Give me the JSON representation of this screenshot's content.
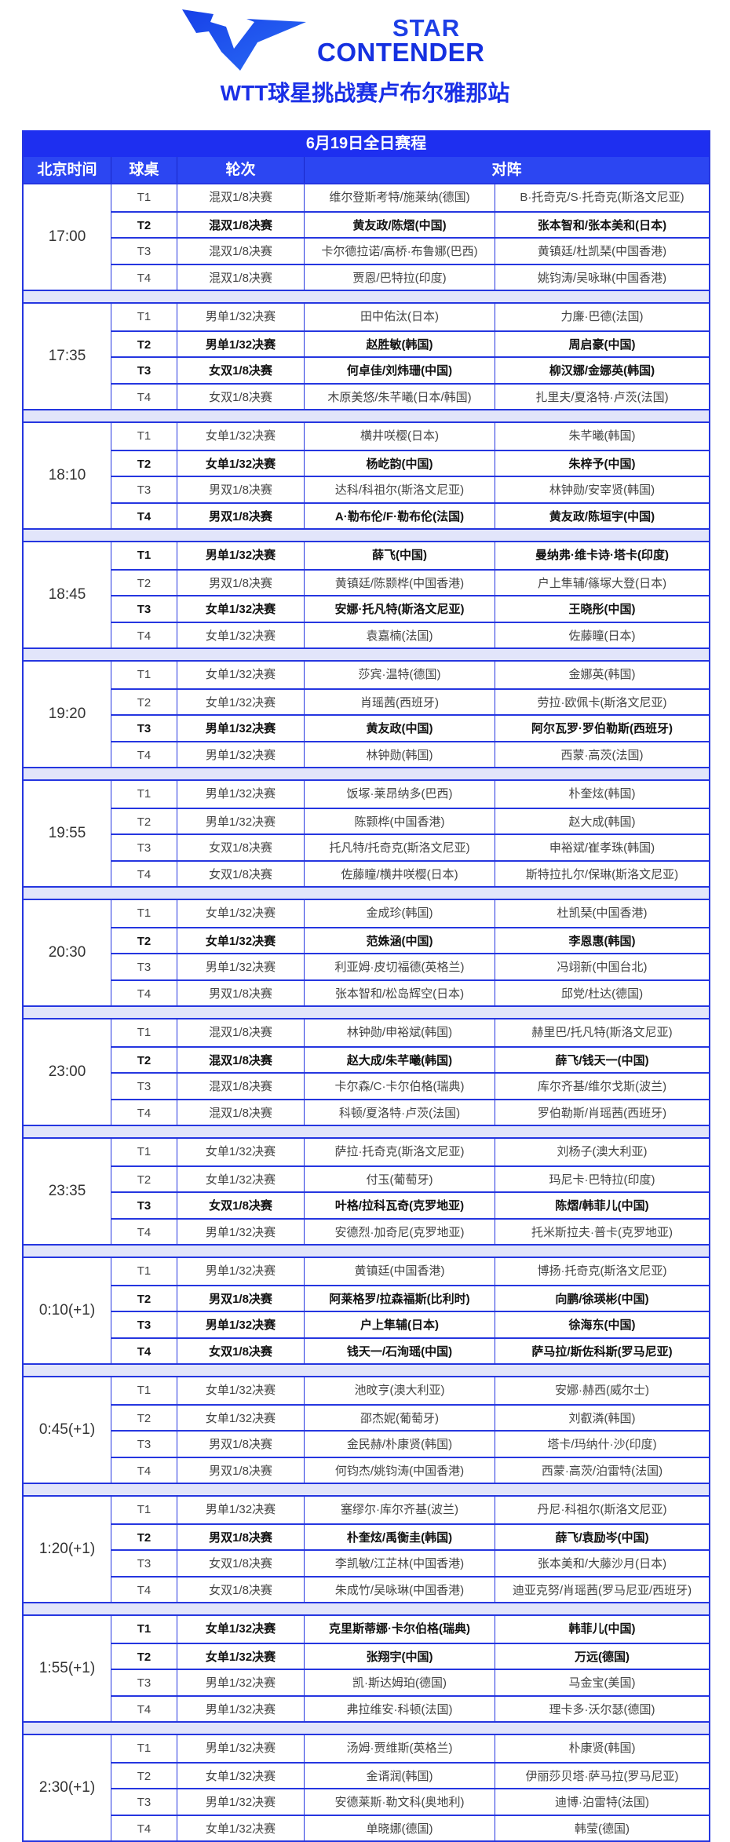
{
  "header": {
    "logo_text_line1": "STAR",
    "logo_text_line2": "CONTENDER",
    "subtitle": "WTT球星挑战赛卢布尔雅那站"
  },
  "colors": {
    "brand_blue": "#1e2ff0",
    "header_blue": "#2c46f2",
    "separator": "#e2e5fa"
  },
  "schedule": {
    "title": "6月19日全日赛程",
    "columns": [
      "北京时间",
      "球桌",
      "轮次",
      "对阵"
    ],
    "groups": [
      {
        "time": "17:00",
        "matches": [
          {
            "table": "T1",
            "round": "混双1/8决赛",
            "player1": "维尔登斯考特/施莱纳(德国)",
            "player2": "B·托奇克/S·托奇克(斯洛文尼亚)",
            "highlight": false
          },
          {
            "table": "T2",
            "round": "混双1/8决赛",
            "player1": "黄友政/陈熠(中国)",
            "player2": "张本智和/张本美和(日本)",
            "highlight": true
          },
          {
            "table": "T3",
            "round": "混双1/8决赛",
            "player1": "卡尔德拉诺/高桥·布鲁娜(巴西)",
            "player2": "黄镇廷/杜凯琹(中国香港)",
            "highlight": false
          },
          {
            "table": "T4",
            "round": "混双1/8决赛",
            "player1": "贾恩/巴特拉(印度)",
            "player2": "姚钧涛/吴咏琳(中国香港)",
            "highlight": false
          }
        ]
      },
      {
        "time": "17:35",
        "matches": [
          {
            "table": "T1",
            "round": "男单1/32决赛",
            "player1": "田中佑汰(日本)",
            "player2": "力廉·巴德(法国)",
            "highlight": false
          },
          {
            "table": "T2",
            "round": "男单1/32决赛",
            "player1": "赵胜敏(韩国)",
            "player2": "周启豪(中国)",
            "highlight": true
          },
          {
            "table": "T3",
            "round": "女双1/8决赛",
            "player1": "何卓佳/刘炜珊(中国)",
            "player2": "柳汉娜/金娜英(韩国)",
            "highlight": true
          },
          {
            "table": "T4",
            "round": "女双1/8决赛",
            "player1": "木原美悠/朱芊曦(日本/韩国)",
            "player2": "扎里夫/夏洛特·卢茨(法国)",
            "highlight": false
          }
        ]
      },
      {
        "time": "18:10",
        "matches": [
          {
            "table": "T1",
            "round": "女单1/32决赛",
            "player1": "横井咲樱(日本)",
            "player2": "朱芊曦(韩国)",
            "highlight": false
          },
          {
            "table": "T2",
            "round": "女单1/32决赛",
            "player1": "杨屹韵(中国)",
            "player2": "朱梓予(中国)",
            "highlight": true
          },
          {
            "table": "T3",
            "round": "男双1/8决赛",
            "player1": "达科/科祖尔(斯洛文尼亚)",
            "player2": "林钟勋/安宰贤(韩国)",
            "highlight": false
          },
          {
            "table": "T4",
            "round": "男双1/8决赛",
            "player1": "A·勒布伦/F·勒布伦(法国)",
            "player2": "黄友政/陈垣宇(中国)",
            "highlight": true
          }
        ]
      },
      {
        "time": "18:45",
        "matches": [
          {
            "table": "T1",
            "round": "男单1/32决赛",
            "player1": "薛飞(中国)",
            "player2": "曼纳弗·维卡诗·塔卡(印度)",
            "highlight": true
          },
          {
            "table": "T2",
            "round": "男双1/8决赛",
            "player1": "黄镇廷/陈颢桦(中国香港)",
            "player2": "户上隼辅/篠塚大登(日本)",
            "highlight": false
          },
          {
            "table": "T3",
            "round": "女单1/32决赛",
            "player1": "安娜·托凡特(斯洛文尼亚)",
            "player2": "王晓彤(中国)",
            "highlight": true
          },
          {
            "table": "T4",
            "round": "女单1/32决赛",
            "player1": "袁嘉楠(法国)",
            "player2": "佐藤瞳(日本)",
            "highlight": false
          }
        ]
      },
      {
        "time": "19:20",
        "matches": [
          {
            "table": "T1",
            "round": "女单1/32决赛",
            "player1": "莎宾·温特(德国)",
            "player2": "金娜英(韩国)",
            "highlight": false
          },
          {
            "table": "T2",
            "round": "女单1/32决赛",
            "player1": "肖瑶茜(西班牙)",
            "player2": "劳拉·欧佩卡(斯洛文尼亚)",
            "highlight": false
          },
          {
            "table": "T3",
            "round": "男单1/32决赛",
            "player1": "黄友政(中国)",
            "player2": "阿尔瓦罗·罗伯勒斯(西班牙)",
            "highlight": true
          },
          {
            "table": "T4",
            "round": "男单1/32决赛",
            "player1": "林钟勋(韩国)",
            "player2": "西蒙·高茨(法国)",
            "highlight": false
          }
        ]
      },
      {
        "time": "19:55",
        "matches": [
          {
            "table": "T1",
            "round": "男单1/32决赛",
            "player1": "饭塚·莱昂纳多(巴西)",
            "player2": "朴奎炫(韩国)",
            "highlight": false
          },
          {
            "table": "T2",
            "round": "男单1/32决赛",
            "player1": "陈颢桦(中国香港)",
            "player2": "赵大成(韩国)",
            "highlight": false
          },
          {
            "table": "T3",
            "round": "女双1/8决赛",
            "player1": "托凡特/托奇克(斯洛文尼亚)",
            "player2": "申裕斌/崔孝珠(韩国)",
            "highlight": false
          },
          {
            "table": "T4",
            "round": "女双1/8决赛",
            "player1": "佐藤瞳/横井咲樱(日本)",
            "player2": "斯特拉扎尔/保琳(斯洛文尼亚)",
            "highlight": false
          }
        ]
      },
      {
        "time": "20:30",
        "matches": [
          {
            "table": "T1",
            "round": "女单1/32决赛",
            "player1": "金成珍(韩国)",
            "player2": "杜凯琹(中国香港)",
            "highlight": false
          },
          {
            "table": "T2",
            "round": "女单1/32决赛",
            "player1": "范姝涵(中国)",
            "player2": "李恩惠(韩国)",
            "highlight": true
          },
          {
            "table": "T3",
            "round": "男单1/32决赛",
            "player1": "利亚姆·皮切福德(英格兰)",
            "player2": "冯翊新(中国台北)",
            "highlight": false
          },
          {
            "table": "T4",
            "round": "男双1/8决赛",
            "player1": "张本智和/松岛辉空(日本)",
            "player2": "邱党/杜达(德国)",
            "highlight": false
          }
        ]
      },
      {
        "time": "23:00",
        "matches": [
          {
            "table": "T1",
            "round": "混双1/8决赛",
            "player1": "林钟勋/申裕斌(韩国)",
            "player2": "赫里巴/托凡特(斯洛文尼亚)",
            "highlight": false
          },
          {
            "table": "T2",
            "round": "混双1/8决赛",
            "player1": "赵大成/朱芊曦(韩国)",
            "player2": "薛飞/钱天一(中国)",
            "highlight": true
          },
          {
            "table": "T3",
            "round": "混双1/8决赛",
            "player1": "卡尔森/C·卡尔伯格(瑞典)",
            "player2": "库尔齐基/维尔戈斯(波兰)",
            "highlight": false
          },
          {
            "table": "T4",
            "round": "混双1/8决赛",
            "player1": "科顿/夏洛特·卢茨(法国)",
            "player2": "罗伯勒斯/肖瑶茜(西班牙)",
            "highlight": false
          }
        ]
      },
      {
        "time": "23:35",
        "matches": [
          {
            "table": "T1",
            "round": "女单1/32决赛",
            "player1": "萨拉·托奇克(斯洛文尼亚)",
            "player2": "刘杨子(澳大利亚)",
            "highlight": false
          },
          {
            "table": "T2",
            "round": "女单1/32决赛",
            "player1": "付玉(葡萄牙)",
            "player2": "玛尼卡·巴特拉(印度)",
            "highlight": false
          },
          {
            "table": "T3",
            "round": "女双1/8决赛",
            "player1": "叶格/拉科瓦奇(克罗地亚)",
            "player2": "陈熠/韩菲儿(中国)",
            "highlight": true
          },
          {
            "table": "T4",
            "round": "男单1/32决赛",
            "player1": "安德烈·加奇尼(克罗地亚)",
            "player2": "托米斯拉夫·普卡(克罗地亚)",
            "highlight": false
          }
        ]
      },
      {
        "time": "0:10(+1)",
        "matches": [
          {
            "table": "T1",
            "round": "男单1/32决赛",
            "player1": "黄镇廷(中国香港)",
            "player2": "博扬·托奇克(斯洛文尼亚)",
            "highlight": false
          },
          {
            "table": "T2",
            "round": "男双1/8决赛",
            "player1": "阿莱格罗/拉森福斯(比利时)",
            "player2": "向鹏/徐瑛彬(中国)",
            "highlight": true
          },
          {
            "table": "T3",
            "round": "男单1/32决赛",
            "player1": "户上隼辅(日本)",
            "player2": "徐海东(中国)",
            "highlight": true
          },
          {
            "table": "T4",
            "round": "女双1/8决赛",
            "player1": "钱天一/石洵瑶(中国)",
            "player2": "萨马拉/斯佐科斯(罗马尼亚)",
            "highlight": true
          }
        ]
      },
      {
        "time": "0:45(+1)",
        "matches": [
          {
            "table": "T1",
            "round": "女单1/32决赛",
            "player1": "池旼亨(澳大利亚)",
            "player2": "安娜·赫西(威尔士)",
            "highlight": false
          },
          {
            "table": "T2",
            "round": "女单1/32决赛",
            "player1": "邵杰妮(葡萄牙)",
            "player2": "刘叡潾(韩国)",
            "highlight": false
          },
          {
            "table": "T3",
            "round": "男双1/8决赛",
            "player1": "金民赫/朴康贤(韩国)",
            "player2": "塔卡/玛纳什·沙(印度)",
            "highlight": false
          },
          {
            "table": "T4",
            "round": "男双1/8决赛",
            "player1": "何钧杰/姚钧涛(中国香港)",
            "player2": "西蒙·高茨/泊雷特(法国)",
            "highlight": false
          }
        ]
      },
      {
        "time": "1:20(+1)",
        "matches": [
          {
            "table": "T1",
            "round": "男单1/32决赛",
            "player1": "塞缪尔·库尔齐基(波兰)",
            "player2": "丹尼·科祖尔(斯洛文尼亚)",
            "highlight": false
          },
          {
            "table": "T2",
            "round": "男双1/8决赛",
            "player1": "朴奎炫/禹衡圭(韩国)",
            "player2": "薛飞/袁励岑(中国)",
            "highlight": true
          },
          {
            "table": "T3",
            "round": "女双1/8决赛",
            "player1": "李凯敏/江芷林(中国香港)",
            "player2": "张本美和/大藤沙月(日本)",
            "highlight": false
          },
          {
            "table": "T4",
            "round": "女双1/8决赛",
            "player1": "朱成竹/吴咏琳(中国香港)",
            "player2": "迪亚克努/肖瑶茜(罗马尼亚/西班牙)",
            "highlight": false
          }
        ]
      },
      {
        "time": "1:55(+1)",
        "matches": [
          {
            "table": "T1",
            "round": "女单1/32决赛",
            "player1": "克里斯蒂娜·卡尔伯格(瑞典)",
            "player2": "韩菲儿(中国)",
            "highlight": true
          },
          {
            "table": "T2",
            "round": "女单1/32决赛",
            "player1": "张翔宇(中国)",
            "player2": "万远(德国)",
            "highlight": true
          },
          {
            "table": "T3",
            "round": "男单1/32决赛",
            "player1": "凯·斯达姆珀(德国)",
            "player2": "马金宝(美国)",
            "highlight": false
          },
          {
            "table": "T4",
            "round": "男单1/32决赛",
            "player1": "弗拉维安·科顿(法国)",
            "player2": "理卡多·沃尔瑟(德国)",
            "highlight": false
          }
        ]
      },
      {
        "time": "2:30(+1)",
        "matches": [
          {
            "table": "T1",
            "round": "男单1/32决赛",
            "player1": "汤姆·贾维斯(英格兰)",
            "player2": "朴康贤(韩国)",
            "highlight": false
          },
          {
            "table": "T2",
            "round": "女单1/32决赛",
            "player1": "金谞润(韩国)",
            "player2": "伊丽莎贝塔·萨马拉(罗马尼亚)",
            "highlight": false
          },
          {
            "table": "T3",
            "round": "男单1/32决赛",
            "player1": "安德莱斯·勒文科(奥地利)",
            "player2": "迪博·泊雷特(法国)",
            "highlight": false
          },
          {
            "table": "T4",
            "round": "女单1/32决赛",
            "player1": "单晓娜(德国)",
            "player2": "韩莹(德国)",
            "highlight": false
          }
        ]
      }
    ]
  }
}
